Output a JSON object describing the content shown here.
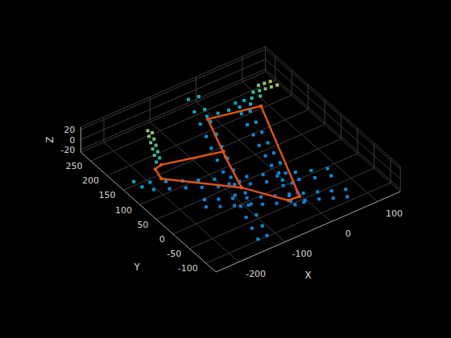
{
  "chart_data": {
    "type": "scatter3d",
    "x_label": "X",
    "y_label": "Y",
    "z_label": "Z",
    "xlim": [
      -250,
      150
    ],
    "ylim": [
      -130,
      280
    ],
    "zlim": [
      -25,
      25
    ],
    "xticks": [
      -200,
      -100,
      0,
      100
    ],
    "yticks": [
      -100,
      -50,
      0,
      50,
      100,
      150,
      200,
      250
    ],
    "zticks": [
      -20,
      0,
      20
    ],
    "grid": true,
    "series": [
      {
        "type": "scatter",
        "marker": "square",
        "points": [
          [
            -245,
            126,
            4
          ],
          [
            -240,
            108,
            2
          ],
          [
            -219,
            113,
            0
          ],
          [
            -224,
            95,
            -2
          ],
          [
            -194,
            100,
            -1
          ],
          [
            -199,
            82,
            -3
          ],
          [
            -168,
            86,
            -2
          ],
          [
            -173,
            69,
            -4
          ],
          [
            -143,
            73,
            -3
          ],
          [
            -148,
            55,
            -5
          ],
          [
            -117,
            60,
            -4
          ],
          [
            -122,
            42,
            -6
          ],
          [
            -91,
            47,
            -3
          ],
          [
            -96,
            29,
            -5
          ],
          [
            -66,
            34,
            -4
          ],
          [
            -71,
            16,
            -6
          ],
          [
            -40,
            21,
            -3
          ],
          [
            -45,
            3,
            -5
          ],
          [
            -15,
            8,
            -2
          ],
          [
            -20,
            -10,
            -4
          ],
          [
            11,
            -6,
            -3
          ],
          [
            6,
            -24,
            -5
          ],
          [
            36,
            -19,
            -2
          ],
          [
            31,
            -37,
            -4
          ],
          [
            62,
            -32,
            -1
          ],
          [
            57,
            -50,
            -3
          ],
          [
            -13,
            254,
            6
          ],
          [
            -31,
            260,
            4
          ],
          [
            -23,
            222,
            3
          ],
          [
            -41,
            228,
            2
          ],
          [
            -33,
            190,
            1
          ],
          [
            -51,
            196,
            0
          ],
          [
            -43,
            158,
            -1
          ],
          [
            -61,
            164,
            -2
          ],
          [
            -54,
            127,
            -3
          ],
          [
            -72,
            133,
            -3
          ],
          [
            -64,
            95,
            -4
          ],
          [
            -82,
            101,
            -4
          ],
          [
            -74,
            63,
            -5
          ],
          [
            -92,
            69,
            -5
          ],
          [
            -84,
            31,
            -5
          ],
          [
            -102,
            37,
            -6
          ],
          [
            -94,
            -1,
            -5
          ],
          [
            -112,
            5,
            -6
          ],
          [
            -104,
            -32,
            -5
          ],
          [
            -122,
            -26,
            -6
          ],
          [
            -115,
            -64,
            -4
          ],
          [
            -133,
            -58,
            -5
          ],
          [
            -125,
            -96,
            -3
          ],
          [
            -143,
            -90,
            -4
          ],
          [
            -135,
            -124,
            -2
          ],
          [
            -153,
            -122,
            -3
          ],
          [
            49,
            203,
            3
          ],
          [
            33,
            207,
            2
          ],
          [
            42,
            175,
            1
          ],
          [
            26,
            179,
            0
          ],
          [
            34,
            146,
            -1
          ],
          [
            18,
            150,
            -2
          ],
          [
            27,
            118,
            -2
          ],
          [
            11,
            122,
            -3
          ],
          [
            19,
            89,
            -3
          ],
          [
            3,
            93,
            -4
          ],
          [
            12,
            61,
            -4
          ],
          [
            -4,
            64,
            -5
          ],
          [
            5,
            32,
            -4
          ],
          [
            -11,
            36,
            -5
          ],
          [
            -3,
            4,
            -5
          ],
          [
            -19,
            7,
            -6
          ],
          [
            -10,
            -25,
            -5
          ],
          [
            -26,
            -21,
            -6
          ],
          [
            -18,
            -53,
            -5
          ],
          [
            -34,
            -50,
            -6
          ],
          [
            -25,
            -82,
            -4
          ],
          [
            -41,
            -78,
            -5
          ],
          [
            -166,
            22,
            -3
          ],
          [
            -174,
            6,
            -5
          ],
          [
            -144,
            10,
            -4
          ],
          [
            -152,
            -6,
            -6
          ],
          [
            -122,
            -2,
            -4
          ],
          [
            -130,
            -18,
            -6
          ],
          [
            -100,
            -14,
            -5
          ],
          [
            -108,
            -30,
            -7
          ],
          [
            -78,
            -26,
            -5
          ],
          [
            -86,
            -42,
            -7
          ],
          [
            -56,
            -38,
            -5
          ],
          [
            -64,
            -54,
            -7
          ],
          [
            -33,
            -49,
            -4
          ],
          [
            -41,
            -65,
            -6
          ],
          [
            -11,
            -61,
            -4
          ],
          [
            -19,
            -77,
            -6
          ],
          [
            11,
            -73,
            -3
          ],
          [
            3,
            -89,
            -5
          ],
          [
            33,
            -85,
            -3
          ],
          [
            25,
            -101,
            -5
          ],
          [
            55,
            -97,
            -2
          ],
          [
            47,
            -113,
            -4
          ],
          [
            -182,
            146,
            6
          ],
          [
            -172,
            150,
            8
          ],
          [
            -176,
            160,
            9
          ],
          [
            -166,
            164,
            10
          ],
          [
            -170,
            174,
            11
          ],
          [
            -160,
            178,
            12
          ],
          [
            -164,
            188,
            13
          ],
          [
            -154,
            192,
            14
          ],
          [
            -158,
            202,
            15
          ],
          [
            -148,
            206,
            16
          ],
          [
            -152,
            214,
            17
          ],
          [
            70,
            205,
            10
          ],
          [
            80,
            200,
            12
          ],
          [
            90,
            196,
            14
          ],
          [
            100,
            192,
            16
          ],
          [
            110,
            188,
            18
          ],
          [
            85,
            210,
            15
          ],
          [
            95,
            206,
            17
          ],
          [
            105,
            202,
            19
          ],
          [
            75,
            190,
            9
          ],
          [
            60,
            195,
            8
          ],
          [
            -30,
            205,
            2
          ],
          [
            -10,
            200,
            3
          ],
          [
            10,
            195,
            4
          ],
          [
            30,
            190,
            5
          ],
          [
            50,
            185,
            6
          ]
        ]
      },
      {
        "type": "line",
        "color": "#d95319",
        "line_style": "solid",
        "marker": "point",
        "points": [
          [
            -95,
            9,
            0
          ],
          [
            -68,
            96,
            0
          ],
          [
            -32,
            200,
            0
          ],
          [
            67,
            177,
            0
          ],
          [
            -25,
            -69,
            0
          ],
          [
            -48,
            -67,
            0
          ],
          [
            -95,
            9,
            0
          ],
          [
            -197,
            110,
            0
          ],
          [
            -190,
            138,
            0
          ],
          [
            -175,
            142,
            0
          ],
          [
            -62,
            110,
            0
          ]
        ]
      }
    ]
  }
}
